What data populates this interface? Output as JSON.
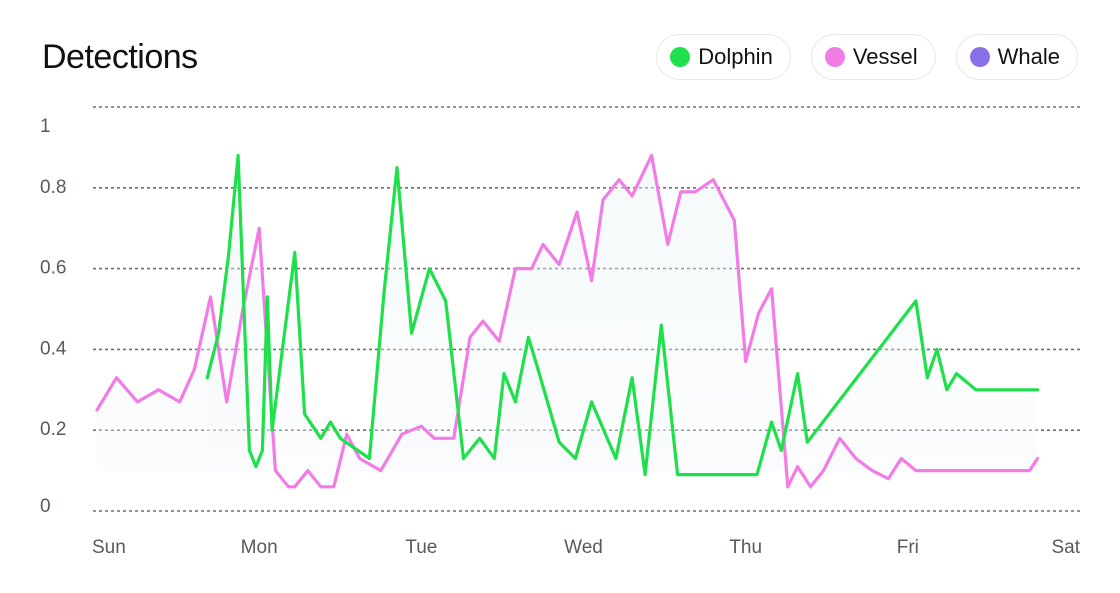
{
  "title": "Detections",
  "legend": [
    {
      "label": "Dolphin",
      "color": "#1ee04a"
    },
    {
      "label": "Vessel",
      "color": "#f27ce6"
    },
    {
      "label": "Whale",
      "color": "#8b6fe8"
    }
  ],
  "chart_data": {
    "type": "line",
    "title": "Detections",
    "xlabel": "",
    "ylabel": "",
    "ylim": [
      0,
      1
    ],
    "y_ticks": [
      "0",
      "0.2",
      "0.4",
      "0.6",
      "0.8",
      "1"
    ],
    "x_ticks": [
      "Sun",
      "Mon",
      "Tue",
      "Wed",
      "Thu",
      "Fri",
      "Sat"
    ],
    "xlim": [
      0,
      6
    ],
    "grid": "horizontal dotted",
    "legend_position": "top-right",
    "series": [
      {
        "name": "Dolphin",
        "color": "#1ee04a",
        "x": [
          0.68,
          0.75,
          0.81,
          0.87,
          0.94,
          0.98,
          1.02,
          1.05,
          1.08,
          1.22,
          1.28,
          1.38,
          1.44,
          1.5,
          1.68,
          1.77,
          1.85,
          1.94,
          2.05,
          2.15,
          2.26,
          2.36,
          2.45,
          2.51,
          2.58,
          2.66,
          2.72,
          2.85,
          2.95,
          3.05,
          3.2,
          3.3,
          3.38,
          3.48,
          3.58,
          3.68,
          3.8,
          3.88,
          3.97,
          4.07,
          4.16,
          4.22,
          4.32,
          4.38,
          5.05,
          5.12,
          5.18,
          5.24,
          5.3,
          5.42,
          5.47,
          5.57,
          5.68,
          5.8
        ],
        "y": [
          0.33,
          0.44,
          0.63,
          0.88,
          0.15,
          0.11,
          0.15,
          0.53,
          0.2,
          0.64,
          0.24,
          0.18,
          0.22,
          0.18,
          0.13,
          0.54,
          0.85,
          0.44,
          0.6,
          0.52,
          0.13,
          0.18,
          0.13,
          0.34,
          0.27,
          0.43,
          0.35,
          0.17,
          0.13,
          0.27,
          0.13,
          0.33,
          0.09,
          0.46,
          0.09,
          0.09,
          0.09,
          0.09,
          0.09,
          0.09,
          0.22,
          0.15,
          0.34,
          0.17,
          0.52,
          0.33,
          0.4,
          0.3,
          0.34,
          0.3,
          0.3,
          0.3,
          0.3,
          0.3
        ]
      },
      {
        "name": "Vessel",
        "color": "#f27ce6",
        "x": [
          0.0,
          0.12,
          0.25,
          0.38,
          0.51,
          0.6,
          0.7,
          0.8,
          0.9,
          1.0,
          1.1,
          1.18,
          1.22,
          1.3,
          1.38,
          1.46,
          1.54,
          1.62,
          1.75,
          1.88,
          2.0,
          2.08,
          2.14,
          2.2,
          2.3,
          2.38,
          2.48,
          2.58,
          2.68,
          2.75,
          2.85,
          2.96,
          3.05,
          3.12,
          3.22,
          3.3,
          3.42,
          3.52,
          3.6,
          3.69,
          3.8,
          3.93,
          4.0,
          4.08,
          4.16,
          4.26,
          4.32,
          4.4,
          4.48,
          4.58,
          4.68,
          4.78,
          4.88,
          4.96,
          5.05,
          5.14,
          5.22,
          5.3,
          5.38,
          5.46,
          5.54,
          5.64,
          5.75,
          5.8
        ],
        "y": [
          0.25,
          0.33,
          0.27,
          0.3,
          0.27,
          0.35,
          0.53,
          0.27,
          0.5,
          0.7,
          0.1,
          0.06,
          0.06,
          0.1,
          0.06,
          0.06,
          0.19,
          0.13,
          0.1,
          0.19,
          0.21,
          0.18,
          0.18,
          0.18,
          0.43,
          0.47,
          0.42,
          0.6,
          0.6,
          0.66,
          0.61,
          0.74,
          0.57,
          0.77,
          0.82,
          0.78,
          0.88,
          0.66,
          0.79,
          0.79,
          0.82,
          0.72,
          0.37,
          0.49,
          0.55,
          0.06,
          0.11,
          0.06,
          0.1,
          0.18,
          0.13,
          0.1,
          0.08,
          0.13,
          0.1,
          0.1,
          0.1,
          0.1,
          0.1,
          0.1,
          0.1,
          0.1,
          0.1,
          0.13
        ]
      }
    ]
  }
}
